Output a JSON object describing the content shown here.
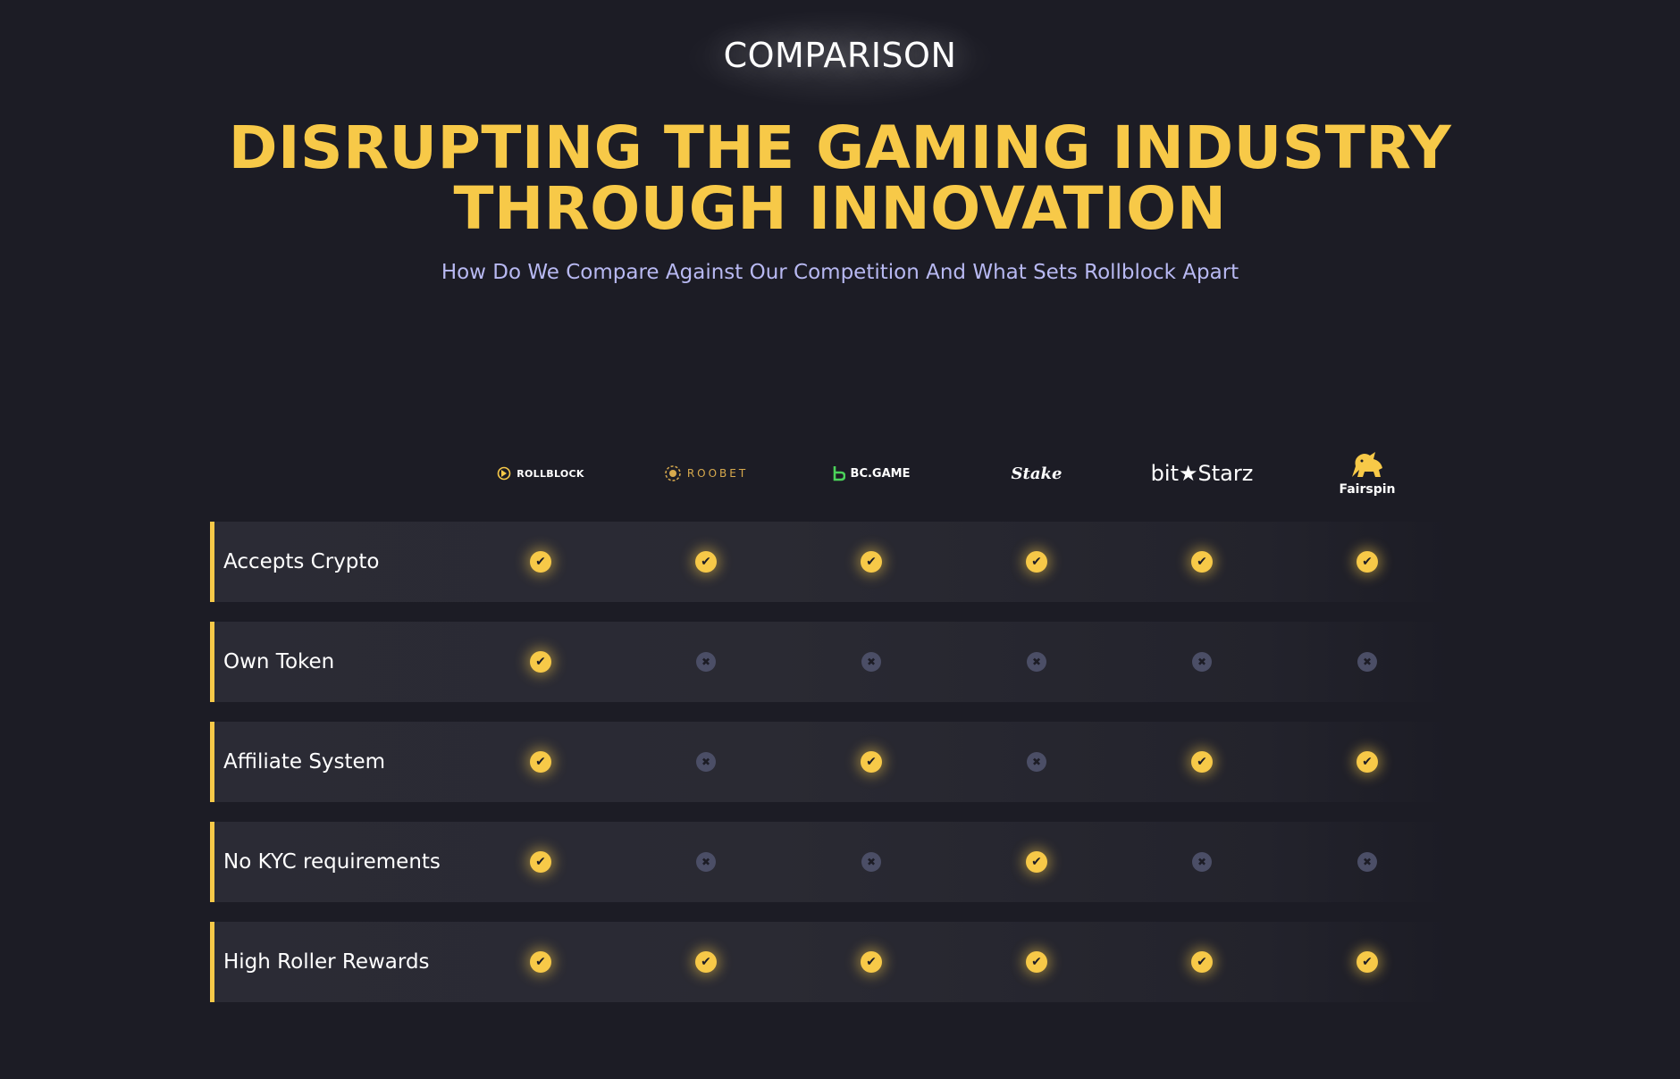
{
  "header": {
    "section_label": "COMPARISON",
    "headline_line1": "DISRUPTING THE GAMING INDUSTRY",
    "headline_line2": "THROUGH INNOVATION",
    "subtitle": "How Do We Compare Against Our Competition And What Sets Rollblock Apart"
  },
  "colors": {
    "background": "#1c1c25",
    "accent": "#f7c948",
    "subtitle": "#b8b9f2",
    "cross": "#4b4e66"
  },
  "competitors": [
    {
      "name": "ROLLBLOCK",
      "icon": "rollblock-logo"
    },
    {
      "name": "ROOBET",
      "icon": "roobet-logo"
    },
    {
      "name": "BC.GAME",
      "icon": "bcgame-logo"
    },
    {
      "name": "Stake",
      "icon": "stake-logo"
    },
    {
      "name": "bit★Starz",
      "icon": "bitstarz-logo"
    },
    {
      "name": "Fairspin",
      "icon": "fairspin-logo"
    }
  ],
  "features": [
    {
      "label": "Accepts Crypto",
      "support": [
        true,
        true,
        true,
        true,
        true,
        true
      ]
    },
    {
      "label": "Own Token",
      "support": [
        true,
        false,
        false,
        false,
        false,
        false
      ]
    },
    {
      "label": "Affiliate System",
      "support": [
        true,
        false,
        true,
        false,
        true,
        true
      ]
    },
    {
      "label": "No KYC requirements",
      "support": [
        true,
        false,
        false,
        true,
        false,
        false
      ]
    },
    {
      "label": "High Roller Rewards",
      "support": [
        true,
        true,
        true,
        true,
        true,
        true
      ]
    }
  ],
  "icons": {
    "check": "check-circle-icon",
    "cross": "cross-circle-icon"
  }
}
